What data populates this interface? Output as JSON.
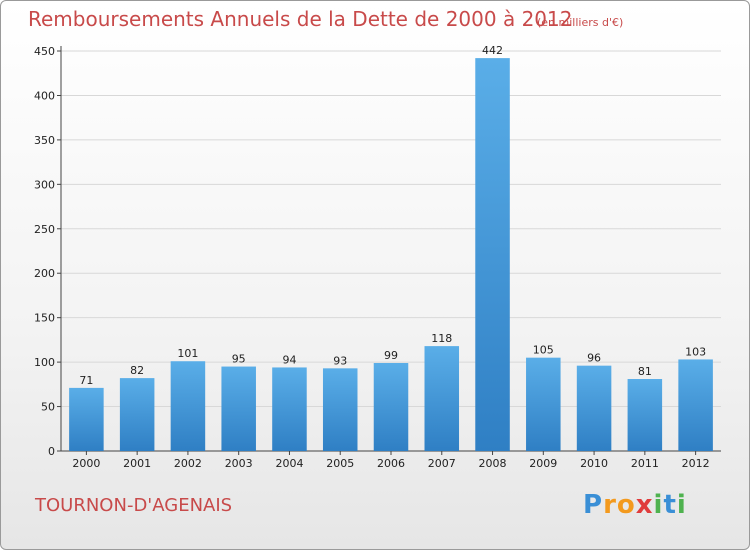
{
  "title": "Remboursements Annuels de la Dette de 2000 à 2012",
  "subtitle": "(en milliers d'€)",
  "location": "TOURNON-D'AGENAIS",
  "logo": {
    "text": "Proxiti",
    "letters": [
      {
        "ch": "P",
        "color": "#3a8fd6"
      },
      {
        "ch": "r",
        "color": "#f39a1e"
      },
      {
        "ch": "o",
        "color": "#f39a1e"
      },
      {
        "ch": "x",
        "color": "#e03c3c"
      },
      {
        "ch": "i",
        "color": "#4fb24f"
      },
      {
        "ch": "t",
        "color": "#3a8fd6"
      },
      {
        "ch": "i",
        "color": "#4fb24f"
      }
    ]
  },
  "colors": {
    "bar_top": "#5aaee8",
    "bar_bottom": "#2f7fc4",
    "title": "#c84a4a",
    "grid": "#d8d8d8"
  },
  "chart_data": {
    "type": "bar",
    "title": "Remboursements Annuels de la Dette de 2000 à 2012",
    "subtitle": "(en milliers d'€)",
    "xlabel": "",
    "ylabel": "",
    "categories": [
      "2000",
      "2001",
      "2002",
      "2003",
      "2004",
      "2005",
      "2006",
      "2007",
      "2008",
      "2009",
      "2010",
      "2011",
      "2012"
    ],
    "values": [
      71,
      82,
      101,
      95,
      94,
      93,
      99,
      118,
      442,
      105,
      96,
      81,
      103
    ],
    "ylim": [
      0,
      450
    ],
    "yticks": [
      0,
      50,
      100,
      150,
      200,
      250,
      300,
      350,
      400,
      450
    ],
    "grid": true,
    "legend": "none",
    "data_labels": true
  }
}
